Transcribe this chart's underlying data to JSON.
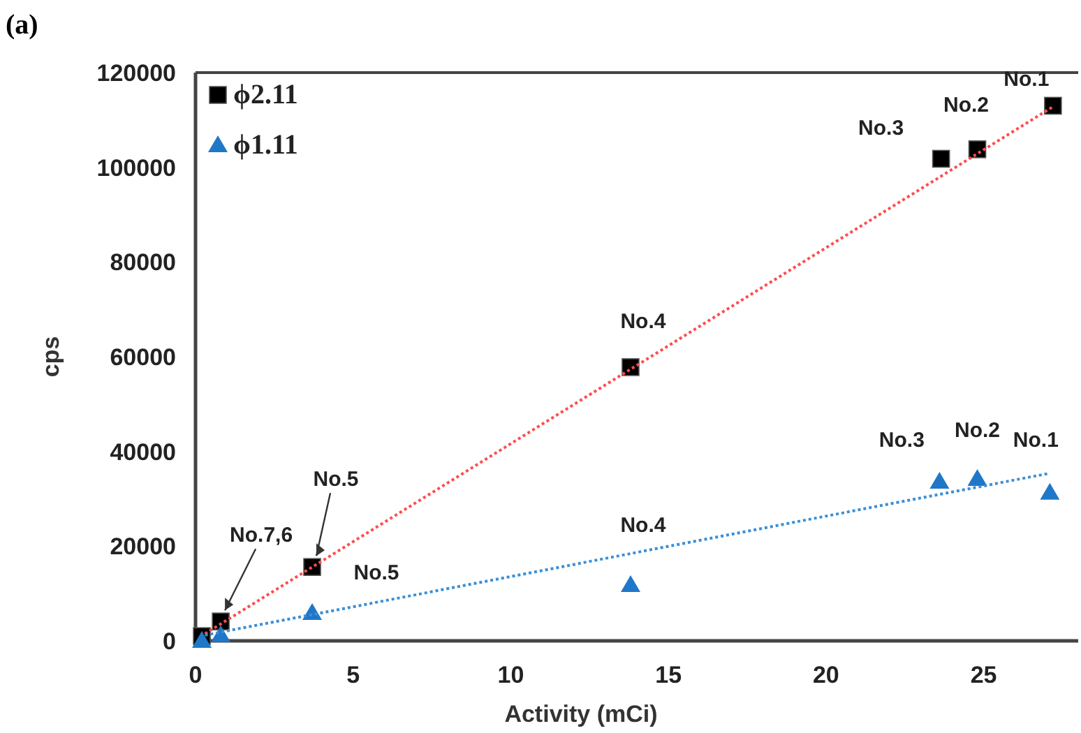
{
  "chart_data": {
    "type": "scatter",
    "xlabel": "Activity (mCi)",
    "ylabel": "cps",
    "xlim": [
      0,
      28
    ],
    "ylim": [
      0,
      120000
    ],
    "xticks": [
      0,
      5,
      10,
      15,
      20,
      25
    ],
    "yticks": [
      0,
      20000,
      40000,
      60000,
      80000,
      100000,
      120000
    ],
    "grid": false,
    "legend": "top left",
    "series": [
      {
        "name": "ϕ2.11",
        "color": "#000000",
        "marker": "square",
        "x": [
          0.2,
          0.8,
          3.7,
          13.8,
          23.65,
          24.8,
          27.2
        ],
        "values": [
          1000,
          4100,
          15600,
          57800,
          101800,
          103800,
          113000
        ]
      },
      {
        "name": "ϕ1.11",
        "color": "#1f77c8",
        "marker": "triangle",
        "x": [
          0.2,
          0.8,
          3.7,
          13.8,
          23.6,
          24.8,
          27.1
        ],
        "values": [
          0,
          1200,
          5900,
          11800,
          33600,
          34200,
          31300
        ]
      },
      {
        "type": "line",
        "color": "#ff4d4d",
        "line_style": "dotted",
        "marker": "none",
        "x": [
          0.3,
          27.2
        ],
        "values": [
          1500,
          112800
        ]
      },
      {
        "type": "line",
        "color": "#3a8fd6",
        "line_style": "dotted",
        "marker": "none",
        "x": [
          0.3,
          27.1
        ],
        "values": [
          1200,
          35400
        ]
      }
    ],
    "annotations": [
      "(a)",
      {
        "text": "No.1",
        "x": 27.2,
        "y": 113000
      },
      {
        "text": "No.2",
        "x": 24.8,
        "y": 103800
      },
      {
        "text": "No.3",
        "x": 23.65,
        "y": 101800
      },
      {
        "text": "No.4",
        "x": 13.8,
        "y": 57800
      },
      {
        "text": "No.5",
        "x": 3.7,
        "y": 15600
      },
      {
        "text": "No.7,6",
        "x": 0.8,
        "y": 4100
      },
      {
        "text": "No.5",
        "x": 3.7,
        "y": 5900
      },
      {
        "text": "No.4",
        "x": 13.8,
        "y": 11800
      },
      {
        "text": "No.3",
        "x": 23.6,
        "y": 33600
      },
      {
        "text": "No.2",
        "x": 24.8,
        "y": 34200
      },
      {
        "text": "No.1",
        "x": 27.1,
        "y": 31300
      }
    ]
  }
}
